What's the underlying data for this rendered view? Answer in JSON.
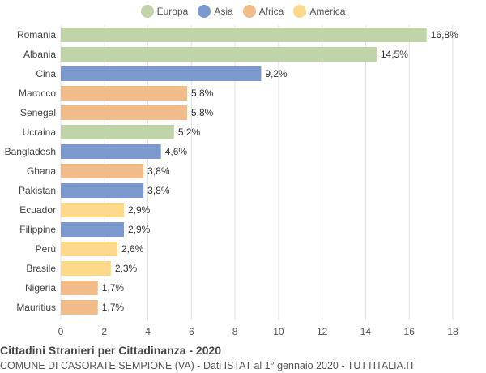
{
  "chart_data": {
    "type": "bar",
    "orientation": "horizontal",
    "legend": {
      "placement": "top-center",
      "entries": [
        {
          "name": "Europa",
          "color": "#c1d4a9"
        },
        {
          "name": "Asia",
          "color": "#7b98cf"
        },
        {
          "name": "Africa",
          "color": "#f2bb8a"
        },
        {
          "name": "America",
          "color": "#fdd98b"
        }
      ]
    },
    "categories": [
      "Romania",
      "Albania",
      "Cina",
      "Marocco",
      "Senegal",
      "Ucraina",
      "Bangladesh",
      "Ghana",
      "Pakistan",
      "Ecuador",
      "Filippine",
      "Perù",
      "Brasile",
      "Nigeria",
      "Mauritius"
    ],
    "values": [
      16.8,
      14.5,
      9.2,
      5.8,
      5.8,
      5.2,
      4.6,
      3.8,
      3.8,
      2.9,
      2.9,
      2.6,
      2.3,
      1.7,
      1.7
    ],
    "value_labels": [
      "16,8%",
      "14,5%",
      "9,2%",
      "5,8%",
      "5,8%",
      "5,2%",
      "4,6%",
      "3,8%",
      "3,8%",
      "2,9%",
      "2,9%",
      "2,6%",
      "2,3%",
      "1,7%",
      "1,7%"
    ],
    "groups": [
      "Europa",
      "Europa",
      "Asia",
      "Africa",
      "Africa",
      "Europa",
      "Asia",
      "Africa",
      "Asia",
      "America",
      "Asia",
      "America",
      "America",
      "Africa",
      "Africa"
    ],
    "xlim": [
      0,
      18
    ],
    "xticks": [
      0,
      2,
      4,
      6,
      8,
      10,
      12,
      14,
      16,
      18
    ],
    "grid": true
  },
  "footer": {
    "title": "Cittadini Stranieri per Cittadinanza - 2020",
    "subtitle": "COMUNE DI CASORATE SEMPIONE (VA) - Dati ISTAT al 1° gennaio 2020 - TUTTITALIA.IT"
  }
}
